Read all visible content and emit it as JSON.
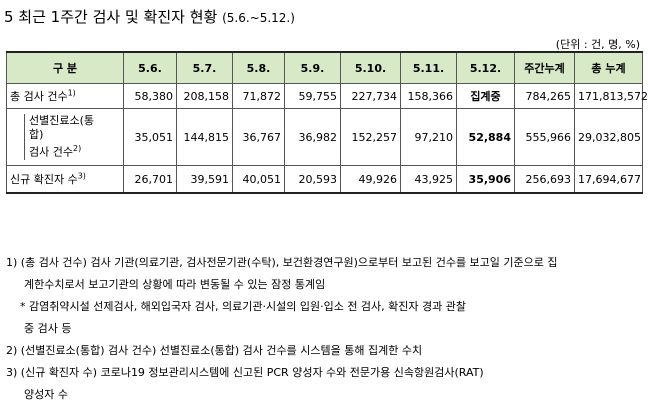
{
  "title": {
    "main": "5 최근 1주간 검사 및 확진자 현황",
    "range": "(5.6.~5.12.)"
  },
  "unit": "(단위 : 건, 명, %)",
  "table": {
    "headers": [
      "구 분",
      "5.6.",
      "5.7.",
      "5.8.",
      "5.9.",
      "5.10.",
      "5.11.",
      "5.12.",
      "주간누계",
      "총 누계"
    ],
    "rows": [
      {
        "label": "총 검사 건수",
        "sup": "1)",
        "values": [
          "58,380",
          "208,158",
          "71,872",
          "59,755",
          "227,734",
          "158,366",
          "집계중",
          "784,265",
          "171,813,572"
        ]
      },
      {
        "label_line1": "선별진료소(통",
        "label_line2": "합)",
        "label_line3": "검사 건수",
        "sup": "2)",
        "values": [
          "35,051",
          "144,815",
          "36,767",
          "36,982",
          "152,257",
          "97,210",
          "52,884",
          "555,966",
          "29,032,805"
        ]
      },
      {
        "label": "신규 확진자 수",
        "sup": "3)",
        "values": [
          "26,701",
          "39,591",
          "40,051",
          "20,593",
          "49,926",
          "43,925",
          "35,906",
          "256,693",
          "17,694,677"
        ]
      }
    ]
  },
  "notes": {
    "n1_line1": "1) (총 검사 건수) 검사 기관(의료기관, 검사전문기관(수탁), 보건환경연구원)으로부터 보고된 건수를 보고일 기준으로 집",
    "n1_line2": "계한수치로서 보고기관의 상황에 따라 변동될 수 있는 잠정 통계임",
    "n1_star1": "* 감염취약시설 선제검사, 해외입국자 검사, 의료기관·시설의 입원·입소 전 검사, 확진자 경과 관찰",
    "n1_star2": "중 검사 등",
    "n2": "2) (선별진료소(통합) 검사 건수) 선별진료소(통합) 검사 건수를 시스템을 통해 집계한 수치",
    "n3_line1": "3) (신규 확진자 수) 코로나19 정보관리시스템에 신고된 PCR 양성자 수와 전문가용 신속항원검사(RAT)",
    "n3_line2": "양성자 수"
  }
}
